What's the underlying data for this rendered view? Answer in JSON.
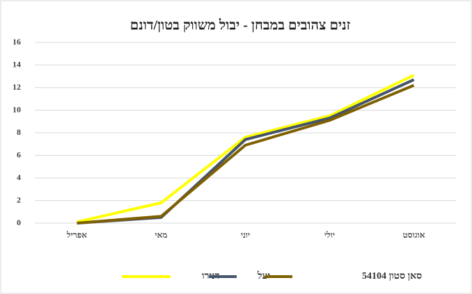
{
  "chart_data": {
    "type": "line",
    "title": "זנים צהובים במבחן - יבול משווק בטון/דונם",
    "categories": [
      "אפריל",
      "מאי",
      "יוני",
      "יולי",
      "אוגוסט"
    ],
    "series": [
      {
        "name": "דנירו",
        "color": "#ffff00",
        "values": [
          0.1,
          1.8,
          7.6,
          9.5,
          13.1
        ]
      },
      {
        "name": "יעל",
        "color": "#44546a",
        "values": [
          0,
          0.5,
          7.4,
          9.3,
          12.7
        ]
      },
      {
        "name": "סאן סטון 54104",
        "color": "#7f6000",
        "values": [
          0,
          0.6,
          6.9,
          9.1,
          12.2
        ]
      }
    ],
    "ylim": [
      0,
      16
    ],
    "yticks": [
      0,
      2,
      4,
      6,
      8,
      10,
      12,
      14,
      16
    ],
    "grid": true,
    "legend": "bottom"
  }
}
